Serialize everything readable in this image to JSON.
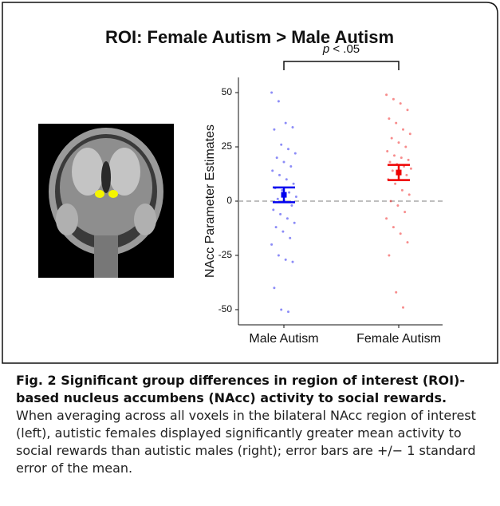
{
  "chart_data": {
    "type": "strip",
    "title": "ROI: Female Autism >  Male Autism",
    "ylabel": "NAcc Parameter Estimates",
    "categories": [
      "Male Autism",
      "Female Autism"
    ],
    "colors": [
      "#0000ee",
      "#ee0000"
    ],
    "points": [
      [
        50,
        46,
        36,
        34,
        33,
        26,
        24,
        22,
        20,
        18,
        16,
        14,
        12,
        10,
        8,
        6,
        5,
        4,
        2,
        1,
        0,
        -2,
        -4,
        -6,
        -8,
        -10,
        -12,
        -14,
        -17,
        -20,
        -25,
        -27,
        -28,
        -40,
        -50,
        -51
      ],
      [
        49,
        47,
        45,
        42,
        38,
        36,
        33,
        31,
        29,
        27,
        25,
        23,
        21,
        20,
        19,
        18,
        17,
        16,
        15,
        14,
        13,
        12,
        10,
        8,
        5,
        3,
        0,
        -2,
        -5,
        -8,
        -12,
        -15,
        -19,
        -25,
        -42,
        -49
      ]
    ],
    "means": [
      2.9,
      13.2
    ],
    "se": [
      3.4,
      3.5
    ],
    "hline": 0,
    "annotation": {
      "symbol": "p",
      "text": " < .05"
    },
    "ylim": [
      -57,
      57
    ],
    "yticks": [
      -50,
      -25,
      0,
      25,
      50
    ]
  },
  "caption": {
    "label": "Fig. 2",
    "title": "Significant group differences in region of interest (ROI)-based nucleus accumbens (NAcc) activity to social rewards.",
    "text": "When averaging across all voxels in the bilateral NAcc region of interest (left), autistic females displayed significantly greater mean activity to social rewards than autistic males (right); error bars are +/− 1 standard error of the mean."
  }
}
